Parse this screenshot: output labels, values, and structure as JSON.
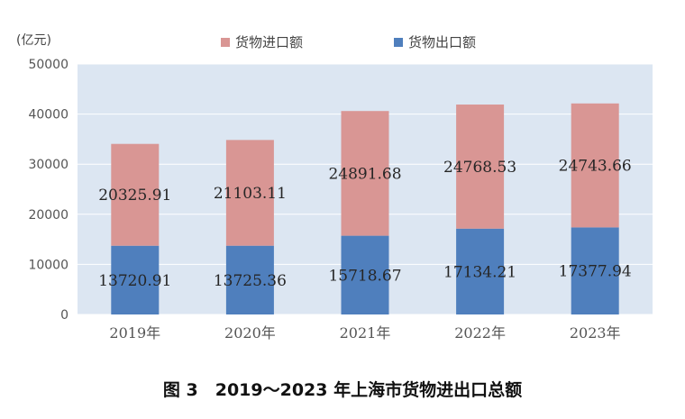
{
  "unit_label": "(亿元)",
  "caption": "图 3　2019～2023 年上海市货物进出口总额",
  "chart_data": {
    "type": "bar",
    "stacked": true,
    "categories": [
      "2019年",
      "2020年",
      "2021年",
      "2022年",
      "2023年"
    ],
    "series": [
      {
        "name": "货物出口额",
        "values": [
          13720.91,
          13725.36,
          15718.67,
          17134.21,
          17377.94
        ],
        "color": "#4f7fbd"
      },
      {
        "name": "货物进口额",
        "values": [
          20325.91,
          21103.11,
          24891.68,
          24768.53,
          24743.66
        ],
        "color": "#d99694"
      }
    ],
    "value_labels": [
      [
        "13720.91",
        "13725.36",
        "15718.67",
        "17134.21",
        "17377.94"
      ],
      [
        "20325.91",
        "21103.11",
        "24891.68",
        "24768.53",
        "24743.66"
      ]
    ],
    "ylim": [
      0,
      50000
    ],
    "yticks": [
      "0",
      "10000",
      "20000",
      "30000",
      "40000",
      "50000"
    ],
    "legend_order": [
      1,
      0
    ],
    "legend_position": "top",
    "plot_background": "#dce6f2",
    "grid": true
  }
}
